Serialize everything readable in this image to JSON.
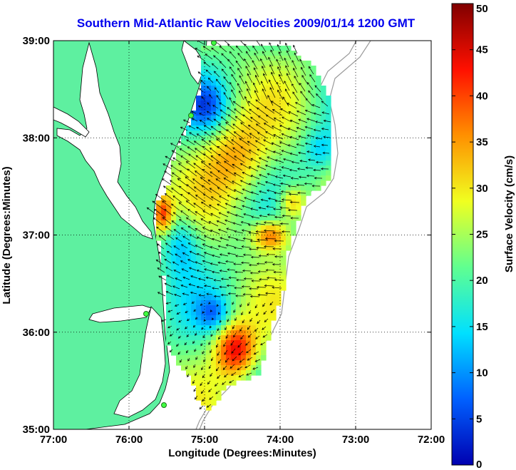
{
  "title": "Southern Mid-Atlantic Raw Velocities 2009/01/14 1200 GMT",
  "x_axis": {
    "label": "Longitude (Degrees:Minutes)",
    "ticks": [
      "77:00",
      "76:00",
      "75:00",
      "74:00",
      "73:00",
      "72:00"
    ],
    "values": [
      -77,
      -76,
      -75,
      -74,
      -73,
      -72
    ]
  },
  "y_axis": {
    "label": "Latitude (Degrees:Minutes)",
    "ticks": [
      "39:00",
      "38:00",
      "37:00",
      "36:00",
      "35:00"
    ],
    "values": [
      39,
      38,
      37,
      36,
      35
    ]
  },
  "colorbar": {
    "label": "Surface Velocity (cm/s)",
    "ticks": [
      "0",
      "5",
      "10",
      "15",
      "20",
      "25",
      "30",
      "35",
      "40",
      "45",
      "50"
    ],
    "min": 0,
    "max": 50,
    "stops": [
      "#0000b0",
      "#0060ff",
      "#00e0ff",
      "#60ff90",
      "#f0ff20",
      "#ff9000",
      "#ff1000",
      "#800000"
    ]
  },
  "colors": {
    "land": "#5ef0a0",
    "water_land": "#ffffff",
    "title": "#0000ee",
    "station": "#40ff40"
  },
  "grid": "dotted"
}
